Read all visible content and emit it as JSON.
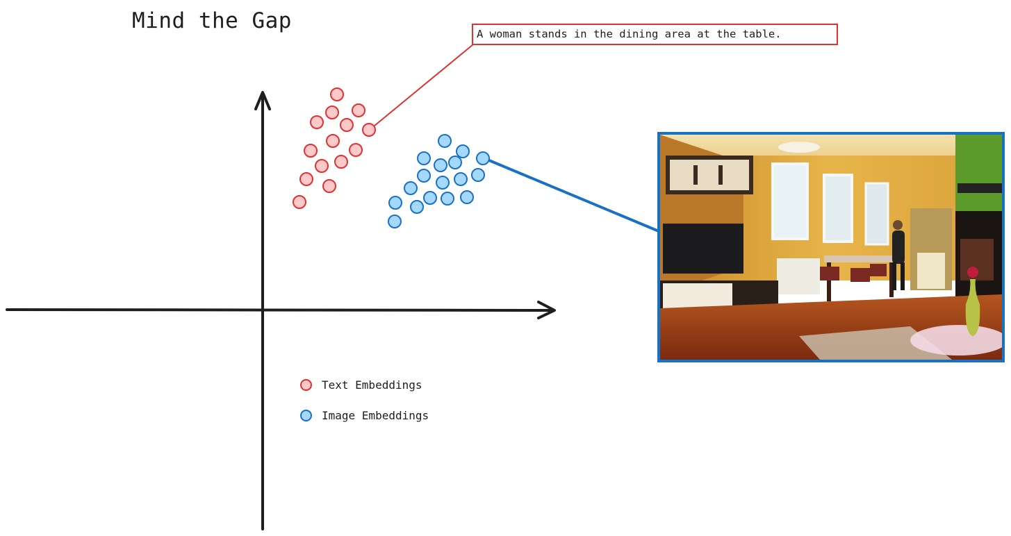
{
  "title": "Mind the Gap",
  "caption": "A woman stands in the dining area at the table.",
  "legend": [
    {
      "label": "Text Embeddings",
      "stroke": "#e03131",
      "fill": "#ffc9c9"
    },
    {
      "label": "Image Embeddings",
      "stroke": "#1971c2",
      "fill": "#a5d8ff"
    }
  ],
  "colors": {
    "axis": "#1e1e1e",
    "text_stroke": "#e03131",
    "text_fill": "#ffc9c9",
    "image_stroke": "#1971c2",
    "image_fill": "#a5d8ff"
  },
  "image": {
    "description_icon": "dining-room-photo",
    "frame_color": "#1971c2"
  }
}
